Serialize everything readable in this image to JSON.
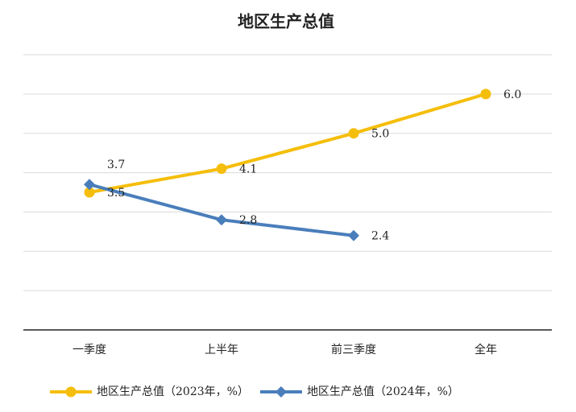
{
  "chart_data": {
    "type": "line",
    "title": "地区生产总值",
    "categories": [
      "一季度",
      "上半年",
      "前三季度",
      "全年"
    ],
    "series": [
      {
        "name": "地区生产总值（2023年，%）",
        "color": "#f5be0b",
        "marker": "circle",
        "values": [
          3.5,
          4.1,
          5.0,
          6.0
        ],
        "value_labels": [
          "3.5",
          "4.1",
          "5.0",
          "6.0"
        ]
      },
      {
        "name": "地区生产总值（2024年，%）",
        "color": "#4a7ebb",
        "marker": "diamond",
        "values": [
          3.7,
          2.8,
          2.4,
          null
        ],
        "value_labels": [
          "3.7",
          "2.8",
          "2.4",
          null
        ]
      }
    ],
    "ylim": [
      0,
      7
    ],
    "yticks": [
      0,
      1,
      2,
      3,
      4,
      5,
      6,
      7
    ],
    "grid": true,
    "legend": "bottom"
  }
}
